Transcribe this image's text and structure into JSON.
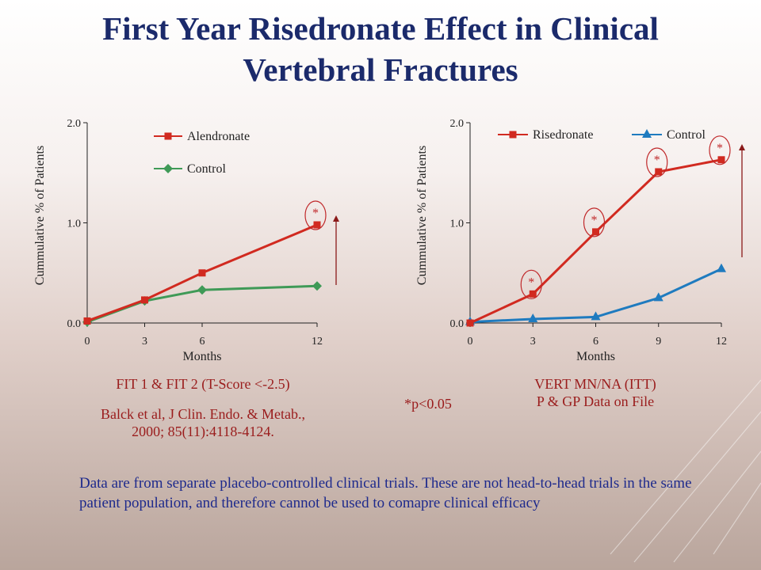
{
  "title": {
    "line1": "First Year Risedronate Effect in Clinical",
    "line2": "Vertebral Fractures"
  },
  "chart_data": [
    {
      "type": "line",
      "title": "",
      "xlabel": "Months",
      "ylabel": "Cummulative % of Patients",
      "x": [
        0,
        3,
        6,
        12
      ],
      "x_ticks": [
        "0",
        "3",
        "6",
        "12"
      ],
      "y_ticks": [
        "0.0",
        "1.0",
        "2.0"
      ],
      "ylim": [
        0,
        2.0
      ],
      "series": [
        {
          "name": "Alendronate",
          "values": [
            0.02,
            0.23,
            0.5,
            0.98
          ],
          "color": "#d12a20",
          "marker": "square"
        },
        {
          "name": "Control",
          "values": [
            0.01,
            0.22,
            0.33,
            0.37
          ],
          "color": "#3f9a57",
          "marker": "diamond"
        }
      ],
      "annotations": [
        {
          "text": "*",
          "x": 12,
          "series": "Alendronate"
        }
      ],
      "caption_lines": [
        "FIT 1 & FIT 2 (T-Score <-2.5)"
      ],
      "reference_lines": [
        "Balck et al, J Clin. Endo. & Metab.,",
        "2000; 85(11):4118-4124."
      ]
    },
    {
      "type": "line",
      "title": "",
      "xlabel": "Months",
      "ylabel": "Cummulative % of Patients",
      "x": [
        0,
        3,
        6,
        9,
        12
      ],
      "x_ticks": [
        "0",
        "3",
        "6",
        "9",
        "12"
      ],
      "y_ticks": [
        "0.0",
        "1.0",
        "2.0"
      ],
      "ylim": [
        0,
        2.0
      ],
      "series": [
        {
          "name": "Risedronate",
          "values": [
            0.0,
            0.29,
            0.91,
            1.51,
            1.63
          ],
          "color": "#d12a20",
          "marker": "square"
        },
        {
          "name": "Control",
          "values": [
            0.01,
            0.04,
            0.06,
            0.25,
            0.54
          ],
          "color": "#1f7bbf",
          "marker": "triangle"
        }
      ],
      "annotations": [
        {
          "text": "*",
          "x": 3,
          "series": "Risedronate"
        },
        {
          "text": "*",
          "x": 6,
          "series": "Risedronate"
        },
        {
          "text": "*",
          "x": 9,
          "series": "Risedronate"
        },
        {
          "text": "*",
          "x": 12,
          "series": "Risedronate"
        }
      ],
      "caption_lines": [
        "VERT MN/NA (ITT)",
        "P & GP Data on File"
      ]
    }
  ],
  "p_note": "*p<0.05",
  "disclaimer": "Data are from separate placebo-controlled clinical trials. These are not head-to-head trials in the same patient population, and therefore cannot be used to comapre clinical efficacy",
  "colors": {
    "title": "#1b2a6b",
    "caption": "#9a1c1c",
    "disclaimer": "#1e2a8c",
    "arrow": "#8b1a1a"
  }
}
